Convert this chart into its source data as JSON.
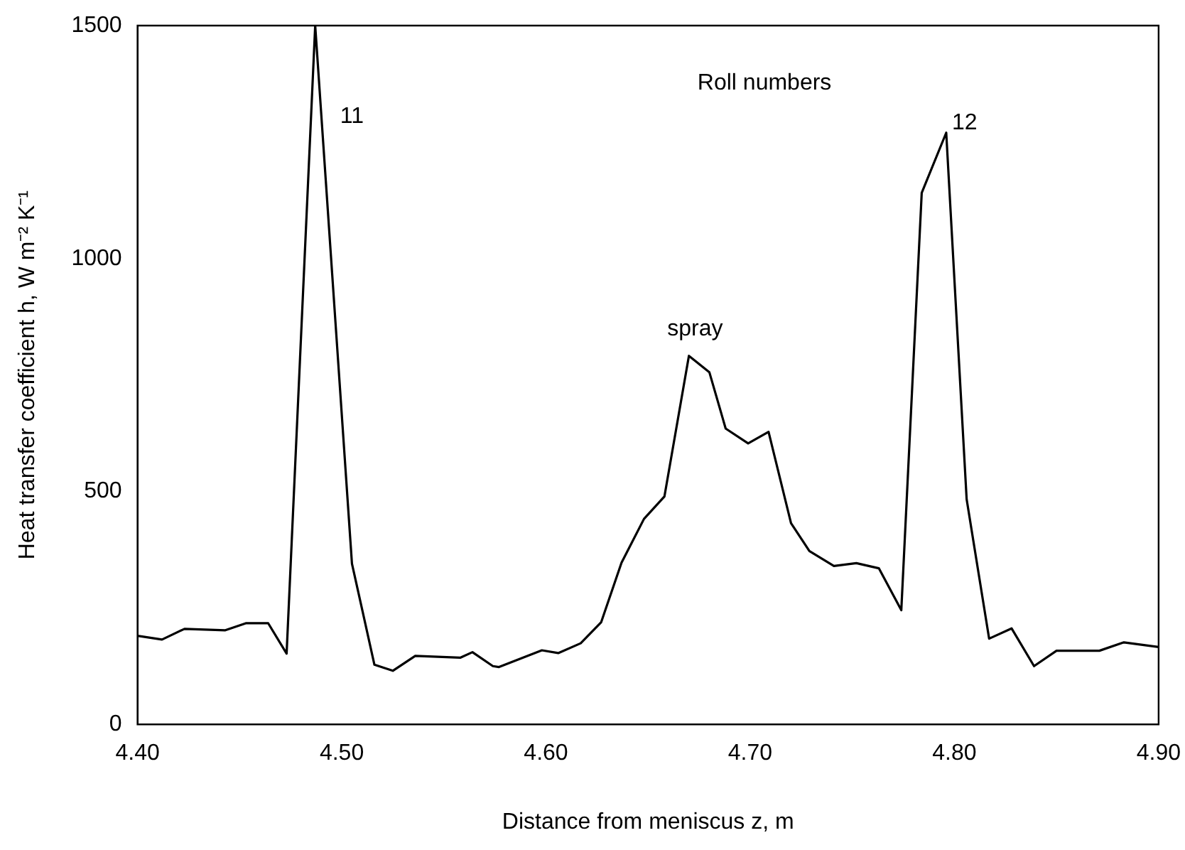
{
  "chart_data": {
    "type": "line",
    "xlabel": "Distance from meniscus z, m",
    "ylabel": "Heat transfer coefficient h, W m⁻² K⁻¹",
    "x": [
      4.4,
      4.412,
      4.423,
      4.443,
      4.453,
      4.464,
      4.473,
      4.487,
      4.505,
      4.516,
      4.525,
      4.536,
      4.558,
      4.564,
      4.574,
      4.577,
      4.598,
      4.606,
      4.617,
      4.627,
      4.637,
      4.648,
      4.658,
      4.67,
      4.68,
      4.688,
      4.699,
      4.709,
      4.72,
      4.729,
      4.741,
      4.752,
      4.763,
      4.774,
      4.784,
      4.796,
      4.806,
      4.817,
      4.828,
      4.839,
      4.85,
      4.871,
      4.883,
      4.9
    ],
    "series": [
      {
        "color": "#000000",
        "values": [
          190,
          182,
          205,
          202,
          217,
          217,
          152,
          1500,
          345,
          128,
          115,
          147,
          143,
          155,
          125,
          123,
          159,
          153,
          174,
          219,
          347,
          441,
          489,
          791,
          756,
          635,
          603,
          628,
          432,
          372,
          340,
          346,
          335,
          245,
          1141,
          1270,
          483,
          184,
          206,
          125,
          158,
          158,
          176,
          166
        ]
      }
    ],
    "xlim": [
      4.4,
      4.9
    ],
    "xticks": [
      {
        "value": 4.4,
        "label": "4.40"
      },
      {
        "value": 4.5,
        "label": "4.50"
      },
      {
        "value": 4.6,
        "label": "4.60"
      },
      {
        "value": 4.7,
        "label": "4.70"
      },
      {
        "value": 4.8,
        "label": "4.80"
      },
      {
        "value": 4.9,
        "label": "4.90"
      }
    ],
    "ylim": [
      0,
      1500
    ],
    "yticks": [
      0,
      500,
      1000,
      1500
    ],
    "grid": false,
    "legend": false,
    "marker": "none",
    "line_style": "solid",
    "annotations": [
      "11",
      "spray",
      "12",
      "Roll numbers"
    ]
  }
}
